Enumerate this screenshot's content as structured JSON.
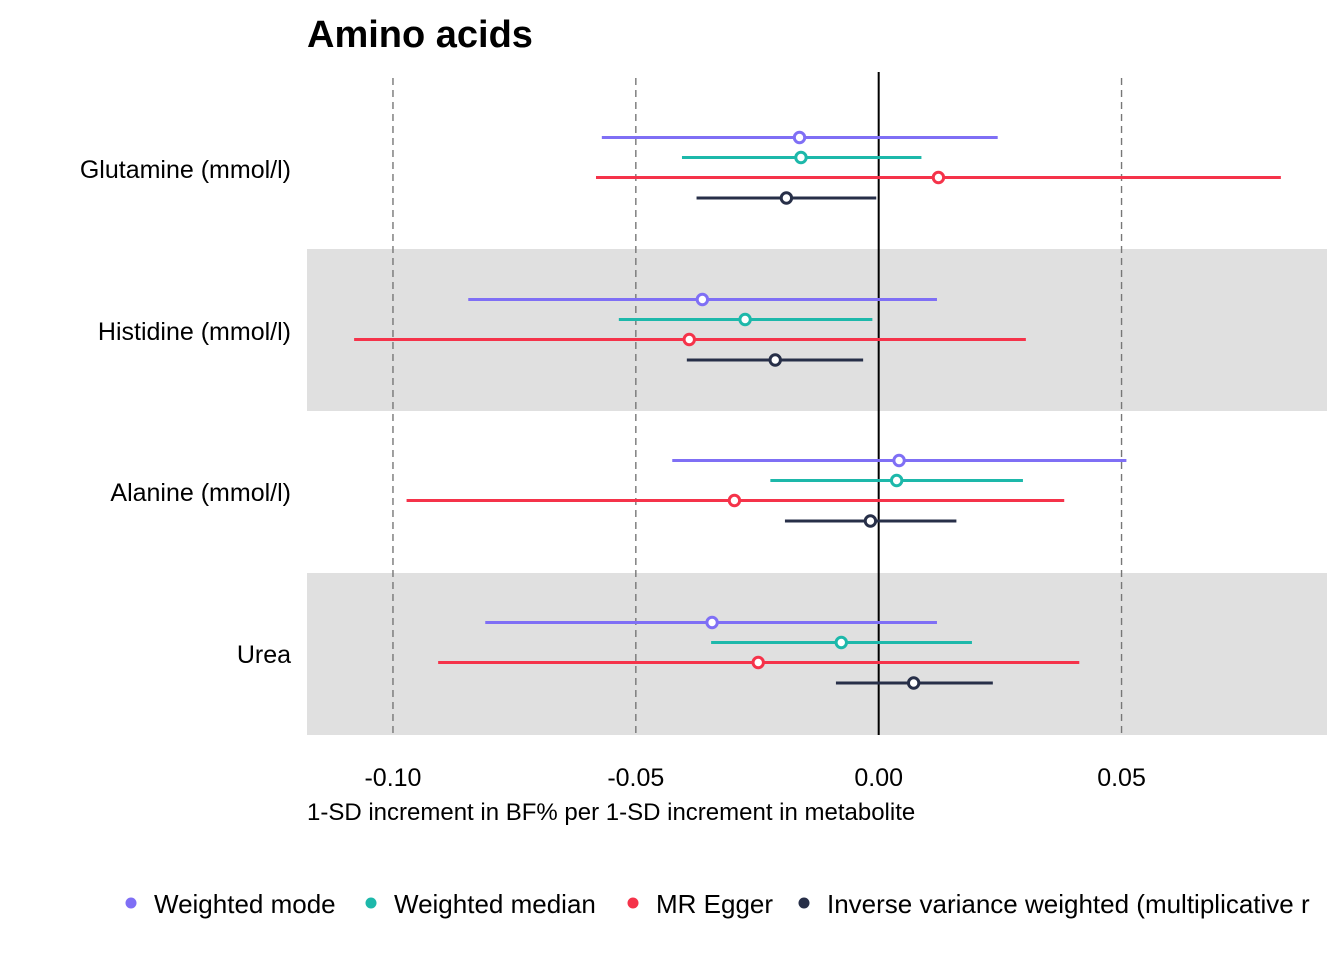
{
  "chart_data": {
    "type": "forest",
    "title": "Amino acids",
    "xlabel": "1-SD increment in BF% per 1-SD increment in metabolite",
    "ylabel": "",
    "xlim": [
      -0.1177,
      0.0923
    ],
    "xticks": [
      -0.1,
      -0.05,
      0.0,
      0.05
    ],
    "xtick_labels": [
      "-0.10",
      "-0.05",
      "0.00",
      "0.05"
    ],
    "reference_line": 0,
    "grid": "dashed vertical at ticks",
    "legend_position": "bottom",
    "categories": [
      "Glutamine (mmol/l)",
      "Histidine (mmol/l)",
      "Alanine (mmol/l)",
      "Urea"
    ],
    "shaded_categories": [
      false,
      true,
      false,
      true
    ],
    "series": [
      {
        "name": "Weighted mode",
        "color": "#7f6ff5",
        "estimates": [
          -0.0163,
          -0.0363,
          0.0042,
          -0.0343
        ],
        "lower": [
          -0.057,
          -0.0845,
          -0.0425,
          -0.081
        ],
        "upper": [
          0.0245,
          0.012,
          0.051,
          0.012
        ]
      },
      {
        "name": "Weighted median",
        "color": "#1db8aa",
        "estimates": [
          -0.016,
          -0.0275,
          0.0037,
          -0.0077
        ],
        "lower": [
          -0.0405,
          -0.0535,
          -0.0223,
          -0.0345
        ],
        "upper": [
          0.0088,
          -0.0013,
          0.0297,
          0.0192
        ]
      },
      {
        "name": "MR Egger",
        "color": "#f5334a",
        "estimates": [
          0.0123,
          -0.039,
          -0.0297,
          -0.0248
        ],
        "lower": [
          -0.0582,
          -0.108,
          -0.0972,
          -0.0907
        ],
        "upper": [
          0.0828,
          0.0303,
          0.0382,
          0.0413
        ]
      },
      {
        "name": "Inverse variance weighted (multiplicative r",
        "color": "#272f48",
        "estimates": [
          -0.019,
          -0.0213,
          -0.0017,
          0.0072
        ],
        "lower": [
          -0.0375,
          -0.0395,
          -0.0193,
          -0.0088
        ],
        "upper": [
          -0.0005,
          -0.0032,
          0.016,
          0.0235
        ]
      }
    ]
  }
}
